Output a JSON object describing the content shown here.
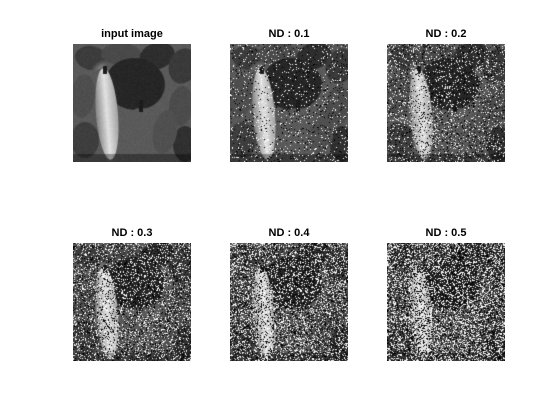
{
  "figure": {
    "background": "#ffffff",
    "title_color": "#000000",
    "panels": [
      {
        "title": "input image",
        "noise_density": 0.0
      },
      {
        "title": "ND : 0.1",
        "noise_density": 0.1
      },
      {
        "title": "ND : 0.2",
        "noise_density": 0.2
      },
      {
        "title": "ND : 0.3",
        "noise_density": 0.3
      },
      {
        "title": "ND : 0.4",
        "noise_density": 0.4
      },
      {
        "title": "ND : 0.5",
        "noise_density": 0.5
      }
    ]
  }
}
